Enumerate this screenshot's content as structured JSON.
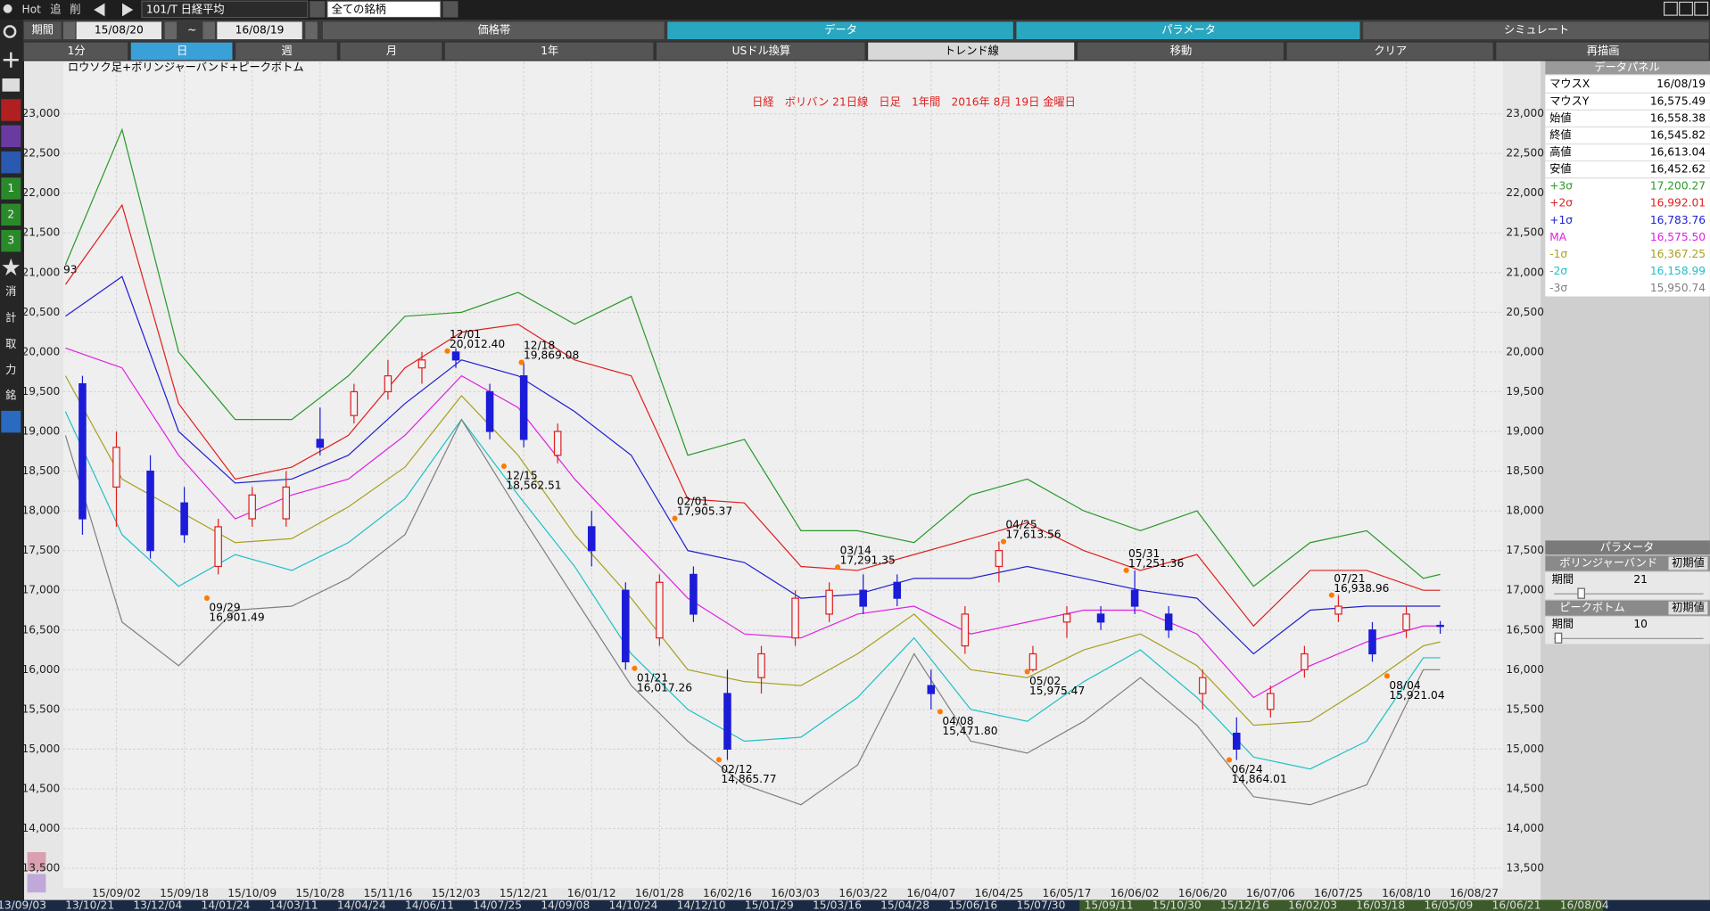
{
  "toolbar": {
    "hot": "Hot",
    "add": "追",
    "del": "削",
    "symbol": "101/T 日経平均",
    "filter": "全ての銘柄"
  },
  "period": {
    "label": "期間",
    "from": "15/08/20",
    "sep": "~",
    "to": "16/08/19"
  },
  "tabs": [
    "価格帯",
    "データ",
    "パラメータ",
    "シミュレート"
  ],
  "intervals": [
    "1分",
    "日",
    "週",
    "月",
    "1年",
    "USドル換算",
    "トレンド線",
    "移動",
    "クリア",
    "再描画"
  ],
  "sidebar": [
    "1",
    "2",
    "3",
    "消",
    "計",
    "取",
    "力",
    "銘"
  ],
  "chart_data": {
    "type": "candlestick",
    "title": "日経　ボリバン 21日線　日足　1年間　2016年 8月 19日 金曜日",
    "subtitle": "ロウソク足+ボリンジャーバンド+ピークボトム",
    "xlim": [
      0,
      250
    ],
    "xticks": [
      {
        "value": 9,
        "label": "15/09/02"
      },
      {
        "value": 21,
        "label": "15/09/18"
      },
      {
        "value": 33,
        "label": "15/10/09"
      },
      {
        "value": 45,
        "label": "15/10/28"
      },
      {
        "value": 57,
        "label": "15/11/16"
      },
      {
        "value": 69,
        "label": "15/12/03"
      },
      {
        "value": 81,
        "label": "15/12/21"
      },
      {
        "value": 93,
        "label": "16/01/12"
      },
      {
        "value": 105,
        "label": "16/01/28"
      },
      {
        "value": 117,
        "label": "16/02/16"
      },
      {
        "value": 129,
        "label": "16/03/03"
      },
      {
        "value": 141,
        "label": "16/03/22"
      },
      {
        "value": 153,
        "label": "16/04/07"
      },
      {
        "value": 165,
        "label": "16/04/25"
      },
      {
        "value": 177,
        "label": "16/05/17"
      },
      {
        "value": 189,
        "label": "16/06/02"
      },
      {
        "value": 201,
        "label": "16/06/20"
      },
      {
        "value": 213,
        "label": "16/07/06"
      },
      {
        "value": 225,
        "label": "16/07/25"
      },
      {
        "value": 237,
        "label": "16/08/10"
      },
      {
        "value": 249,
        "label": "16/08/27"
      }
    ],
    "ylim": [
      13250,
      23650
    ],
    "yticks": [
      {
        "value": 23000,
        "label": "23,000"
      },
      {
        "value": 22500,
        "label": "22,500"
      },
      {
        "value": 22000,
        "label": "22,000"
      },
      {
        "value": 21500,
        "label": "21,500"
      },
      {
        "value": 21000,
        "label": "21,000"
      },
      {
        "value": 20500,
        "label": "20,500"
      },
      {
        "value": 20000,
        "label": "20,000"
      },
      {
        "value": 19500,
        "label": "19,500"
      },
      {
        "value": 19000,
        "label": "19,000"
      },
      {
        "value": 18500,
        "label": "18,500"
      },
      {
        "value": 18000,
        "label": "18,000"
      },
      {
        "value": 17500,
        "label": "17,500"
      },
      {
        "value": 17000,
        "label": "17,000"
      },
      {
        "value": 16500,
        "label": "16,500"
      },
      {
        "value": 16000,
        "label": "16,000"
      },
      {
        "value": 15500,
        "label": "15,500"
      },
      {
        "value": 15000,
        "label": "15,000"
      },
      {
        "value": 14500,
        "label": "14,500"
      },
      {
        "value": 14000,
        "label": "14,000"
      },
      {
        "value": 13500,
        "label": "13,500"
      }
    ],
    "grid": true,
    "candles": {
      "up_color": "#e02020",
      "down_color": "#1c1cd8",
      "x": [
        3,
        9,
        15,
        21,
        27,
        33,
        39,
        45,
        51,
        57,
        63,
        69,
        75,
        81,
        87,
        93,
        99,
        105,
        111,
        117,
        123,
        129,
        135,
        141,
        147,
        153,
        159,
        165,
        171,
        177,
        183,
        189,
        195,
        201,
        207,
        213,
        219,
        225,
        231,
        237,
        243
      ],
      "open": [
        19600,
        18300,
        18500,
        18100,
        17300,
        17900,
        17900,
        18900,
        19200,
        19500,
        19800,
        20000,
        19500,
        19700,
        18700,
        17800,
        17000,
        16400,
        17200,
        15700,
        15900,
        16400,
        16700,
        17000,
        17100,
        15800,
        16300,
        17300,
        16000,
        16600,
        16700,
        17000,
        16700,
        15700,
        15200,
        15500,
        16000,
        16700,
        16500,
        16500,
        16558.38
      ],
      "high": [
        19700,
        19000,
        18700,
        18300,
        17900,
        18300,
        18500,
        19300,
        19600,
        19900,
        20000,
        20050,
        19600,
        19869,
        19100,
        18000,
        17100,
        17200,
        17300,
        16000,
        16300,
        17000,
        17100,
        17200,
        17200,
        16000,
        16800,
        17613,
        16300,
        16800,
        16800,
        17251,
        16800,
        16000,
        15400,
        15800,
        16300,
        16938,
        16600,
        16800,
        16613.04
      ],
      "low": [
        17700,
        17800,
        17400,
        17600,
        17200,
        17800,
        17800,
        18700,
        19100,
        19400,
        19600,
        19800,
        18900,
        18800,
        18600,
        17300,
        16000,
        16300,
        16600,
        14865,
        15700,
        16300,
        16600,
        16700,
        16800,
        15500,
        16200,
        17100,
        15975,
        16400,
        16500,
        16700,
        16400,
        15500,
        14864,
        15400,
        15900,
        16600,
        16100,
        16400,
        16452.62
      ],
      "close": [
        17900,
        18800,
        17500,
        17700,
        17800,
        18200,
        18300,
        18800,
        19500,
        19700,
        19900,
        19900,
        19000,
        18900,
        19000,
        17500,
        16100,
        17100,
        16700,
        15000,
        16200,
        16900,
        17000,
        16800,
        16900,
        15700,
        16700,
        17500,
        16200,
        16700,
        16600,
        16800,
        16500,
        15900,
        15000,
        15700,
        16200,
        16800,
        16200,
        16700,
        16545.82
      ]
    },
    "x": [
      0,
      10,
      20,
      30,
      40,
      50,
      60,
      70,
      80,
      90,
      100,
      110,
      120,
      130,
      140,
      150,
      160,
      170,
      180,
      190,
      200,
      210,
      220,
      230,
      240,
      243
    ],
    "series": [
      {
        "name": "+3σ",
        "color": "#2a9a2a",
        "values": [
          21100,
          22800,
          20000,
          19150,
          19150,
          19700,
          20450,
          20500,
          20750,
          20350,
          20700,
          18700,
          18900,
          17750,
          17750,
          17600,
          18200,
          18400,
          18000,
          17750,
          18000,
          17050,
          17600,
          17750,
          17150,
          17200
        ]
      },
      {
        "name": "+2σ",
        "color": "#e02020",
        "values": [
          20850,
          21850,
          19350,
          18400,
          18550,
          18950,
          19800,
          20250,
          20350,
          19900,
          19700,
          18150,
          18100,
          17300,
          17250,
          17450,
          17650,
          17850,
          17500,
          17250,
          17450,
          16550,
          17250,
          17250,
          17000,
          17000
        ]
      },
      {
        "name": "+1σ",
        "color": "#2020d0",
        "values": [
          20450,
          20950,
          19000,
          18350,
          18400,
          18700,
          19350,
          19900,
          19700,
          19250,
          18700,
          17500,
          17350,
          16900,
          16950,
          17150,
          17150,
          17300,
          17150,
          17000,
          16900,
          16200,
          16750,
          16800,
          16800,
          16800
        ]
      },
      {
        "name": "MA",
        "color": "#e020e0",
        "values": [
          20050,
          19800,
          18700,
          17900,
          18200,
          18400,
          18950,
          19700,
          19300,
          18400,
          17650,
          16900,
          16450,
          16400,
          16700,
          16800,
          16450,
          16600,
          16750,
          16750,
          16450,
          15650,
          16050,
          16350,
          16550,
          16550
        ]
      },
      {
        "name": "-1σ",
        "color": "#a8a020",
        "values": [
          19700,
          18400,
          18000,
          17600,
          17650,
          18050,
          18550,
          19450,
          18700,
          17700,
          16900,
          16000,
          15850,
          15800,
          16200,
          16700,
          16000,
          15900,
          16250,
          16450,
          16050,
          15300,
          15350,
          15800,
          16300,
          16350
        ]
      },
      {
        "name": "-2σ",
        "color": "#20c0c8",
        "values": [
          19250,
          17700,
          17050,
          17450,
          17250,
          17600,
          18150,
          19150,
          18200,
          17300,
          16200,
          15500,
          15100,
          15150,
          15650,
          16400,
          15500,
          15350,
          15850,
          16250,
          15650,
          14900,
          14750,
          15100,
          16150,
          16150
        ]
      },
      {
        "name": "-3σ",
        "color": "#808080",
        "values": [
          18950,
          16600,
          16050,
          16750,
          16800,
          17150,
          17700,
          19150,
          18000,
          16900,
          15800,
          15100,
          14550,
          14300,
          14800,
          16200,
          15100,
          14950,
          15350,
          15900,
          15300,
          14400,
          14300,
          14550,
          16000,
          16000
        ]
      }
    ],
    "peaks": [
      {
        "x": 25,
        "date": "09/29",
        "value": 16901.49,
        "label": "16,901.49",
        "kind": "low"
      },
      {
        "x": 67.5,
        "date": "12/01",
        "value": 20012.4,
        "label": "20,012.40",
        "kind": "high"
      },
      {
        "x": 77.5,
        "date": "12/15",
        "value": 18562.51,
        "label": "18,562.51",
        "kind": "low"
      },
      {
        "x": 80.6,
        "date": "12/18",
        "value": 19869.08,
        "label": "19,869.08",
        "kind": "high"
      },
      {
        "x": 100.6,
        "date": "01/21",
        "value": 16017.26,
        "label": "16,017.26",
        "kind": "low"
      },
      {
        "x": 107.7,
        "date": "02/01",
        "value": 17905.37,
        "label": "17,905.37",
        "kind": "high"
      },
      {
        "x": 115.5,
        "date": "02/12",
        "value": 14865.77,
        "label": "14,865.77",
        "kind": "low"
      },
      {
        "x": 136.5,
        "date": "03/14",
        "value": 17291.35,
        "label": "17,291.35",
        "kind": "high"
      },
      {
        "x": 154.6,
        "date": "04/08",
        "value": 15471.8,
        "label": "15,471.80",
        "kind": "low"
      },
      {
        "x": 165.8,
        "date": "04/25",
        "value": 17613.56,
        "label": "17,613.56",
        "kind": "high"
      },
      {
        "x": 170,
        "date": "05/02",
        "value": 15975.47,
        "label": "15,975.47",
        "kind": "low"
      },
      {
        "x": 187.5,
        "date": "05/31",
        "value": 17251.36,
        "label": "17,251.36",
        "kind": "high"
      },
      {
        "x": 205.7,
        "date": "06/24",
        "value": 14864.01,
        "label": "14,864.01",
        "kind": "low"
      },
      {
        "x": 223.8,
        "date": "07/21",
        "value": 16938.96,
        "label": "16,938.96",
        "kind": "high"
      },
      {
        "x": 233.6,
        "date": "08/04",
        "value": 15921.04,
        "label": "15,921.04",
        "kind": "low"
      }
    ],
    "edge_label": "93"
  },
  "data_panel": {
    "title": "データパネル",
    "rows": [
      {
        "label": "マウスX",
        "value": "16/08/19"
      },
      {
        "label": "マウスY",
        "value": "16,575.49"
      },
      {
        "label": "始値",
        "value": "16,558.38"
      },
      {
        "label": "終値",
        "value": "16,545.82"
      },
      {
        "label": "高値",
        "value": "16,613.04"
      },
      {
        "label": "安値",
        "value": "16,452.62"
      }
    ],
    "band_values": [
      "17,200.27",
      "16,992.01",
      "16,783.76",
      "16,575.50",
      "16,367.25",
      "16,158.99",
      "15,950.74"
    ]
  },
  "params_panel": {
    "title": "パラメータ",
    "groups": [
      {
        "name": "ボリンジャーバンド",
        "reset": "初期値",
        "param": "期間",
        "value": 21
      },
      {
        "name": "ピークボトム",
        "reset": "初期値",
        "param": "期間",
        "value": 10
      }
    ]
  },
  "navigator": [
    "13/09/03",
    "13/10/21",
    "13/12/04",
    "14/01/24",
    "14/03/11",
    "14/04/24",
    "14/06/11",
    "14/07/25",
    "14/09/08",
    "14/10/24",
    "14/12/10",
    "15/01/29",
    "15/03/16",
    "15/04/28",
    "15/06/16",
    "15/07/30",
    "15/09/11",
    "15/10/30",
    "15/12/16",
    "16/02/03",
    "16/03/18",
    "16/05/09",
    "16/06/21",
    "16/08/04"
  ]
}
